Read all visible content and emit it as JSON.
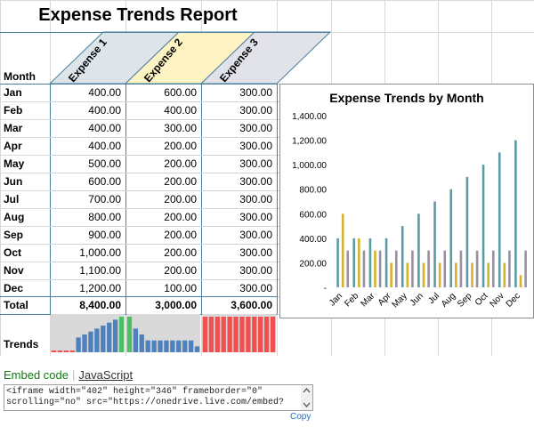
{
  "report": {
    "title": "Expense Trends Report",
    "month_header": "Month",
    "expense_headers": [
      "Expense 1",
      "Expense 2",
      "Expense 3"
    ],
    "header_colors": [
      "#dde4ea",
      "#fdf3c3",
      "#e2e2ea"
    ],
    "rows": [
      {
        "month": "Jan",
        "e1": "400.00",
        "e2": "600.00",
        "e3": "300.00"
      },
      {
        "month": "Feb",
        "e1": "400.00",
        "e2": "400.00",
        "e3": "300.00"
      },
      {
        "month": "Mar",
        "e1": "400.00",
        "e2": "300.00",
        "e3": "300.00"
      },
      {
        "month": "Apr",
        "e1": "400.00",
        "e2": "200.00",
        "e3": "300.00"
      },
      {
        "month": "May",
        "e1": "500.00",
        "e2": "200.00",
        "e3": "300.00"
      },
      {
        "month": "Jun",
        "e1": "600.00",
        "e2": "200.00",
        "e3": "300.00"
      },
      {
        "month": "Jul",
        "e1": "700.00",
        "e2": "200.00",
        "e3": "300.00"
      },
      {
        "month": "Aug",
        "e1": "800.00",
        "e2": "200.00",
        "e3": "300.00"
      },
      {
        "month": "Sep",
        "e1": "900.00",
        "e2": "200.00",
        "e3": "300.00"
      },
      {
        "month": "Oct",
        "e1": "1,000.00",
        "e2": "200.00",
        "e3": "300.00"
      },
      {
        "month": "Nov",
        "e1": "1,100.00",
        "e2": "200.00",
        "e3": "300.00"
      },
      {
        "month": "Dec",
        "e1": "1,200.00",
        "e2": "100.00",
        "e3": "300.00"
      }
    ],
    "total": {
      "label": "Total",
      "e1": "8,400.00",
      "e2": "3,000.00",
      "e3": "3,600.00"
    },
    "trends_label": "Trends",
    "sparkline_colors": {
      "bar": "#4f81bd",
      "highlight": "#4bc060",
      "red": "#f05050",
      "bg": "#d9d9d9"
    }
  },
  "chart_data": {
    "type": "bar",
    "title": "Expense Trends by Month",
    "categories": [
      "Jan",
      "Feb",
      "Mar",
      "Apr",
      "May",
      "Jun",
      "Jul",
      "Aug",
      "Sep",
      "Oct",
      "Nov",
      "Dec"
    ],
    "series": [
      {
        "values": [
          400,
          400,
          400,
          400,
          500,
          600,
          700,
          800,
          900,
          1000,
          1100,
          1200
        ],
        "color": "#5b9ba6"
      },
      {
        "values": [
          600,
          400,
          300,
          200,
          200,
          200,
          200,
          200,
          200,
          200,
          200,
          100
        ],
        "color": "#d6b22e"
      },
      {
        "values": [
          300,
          300,
          300,
          300,
          300,
          300,
          300,
          300,
          300,
          300,
          300,
          300
        ],
        "color": "#9a8fa0"
      }
    ],
    "ylim": [
      0,
      1400
    ],
    "yticks": [
      "-",
      "200.00",
      "400.00",
      "600.00",
      "800.00",
      "1,000.00",
      "1,200.00",
      "1,400.00"
    ],
    "grid": false,
    "legend": "none"
  },
  "embed": {
    "tab_embed": "Embed code",
    "tab_js": "JavaScript",
    "code": "<iframe width=\"402\" height=\"346\" frameborder=\"0\" scrolling=\"no\" src=\"https://onedrive.live.com/embed?",
    "copy_label": "Copy"
  }
}
